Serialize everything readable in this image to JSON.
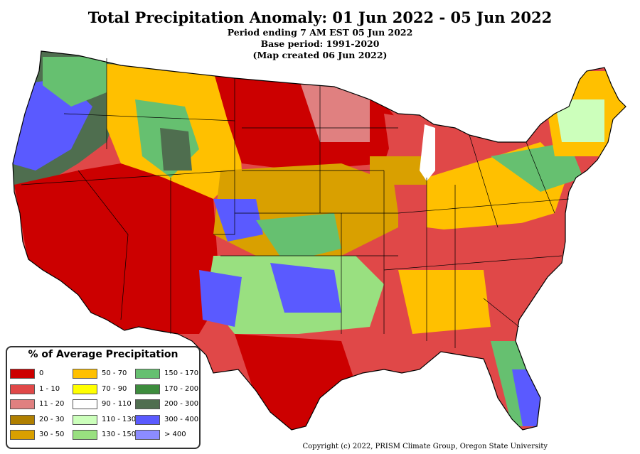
{
  "header": {
    "title": "Total Precipitation Anomaly: 01 Jun 2022 - 05 Jun 2022",
    "line1": "Period ending 7 AM EST 05 Jun 2022",
    "line2": "Base period: 1991-2020",
    "line3": "(Map created 06 Jun 2022)"
  },
  "legend": {
    "title": "% of Average Precipitation",
    "items": [
      {
        "label": "0",
        "color": "#cc0000"
      },
      {
        "label": "1 - 10",
        "color": "#e04848"
      },
      {
        "label": "11 - 20",
        "color": "#e08080"
      },
      {
        "label": "20 - 30",
        "color": "#b07f00"
      },
      {
        "label": "30 - 50",
        "color": "#d9a000"
      },
      {
        "label": "50 - 70",
        "color": "#ffc000"
      },
      {
        "label": "70 - 90",
        "color": "#ffff00"
      },
      {
        "label": "90 - 110",
        "color": "#ffffff"
      },
      {
        "label": "110 - 130",
        "color": "#ccffbb"
      },
      {
        "label": "130 - 150",
        "color": "#99e080"
      },
      {
        "label": "150 - 170",
        "color": "#66c070"
      },
      {
        "label": "170 - 200",
        "color": "#3d8c3d"
      },
      {
        "label": "200 - 300",
        "color": "#4f6e4f"
      },
      {
        "label": "300 - 400",
        "color": "#5a5aff"
      },
      {
        "label": "> 400",
        "color": "#8c8cff"
      }
    ]
  },
  "copyright": "Copyright (c) 2022, PRISM Climate Group, Oregon State University"
}
